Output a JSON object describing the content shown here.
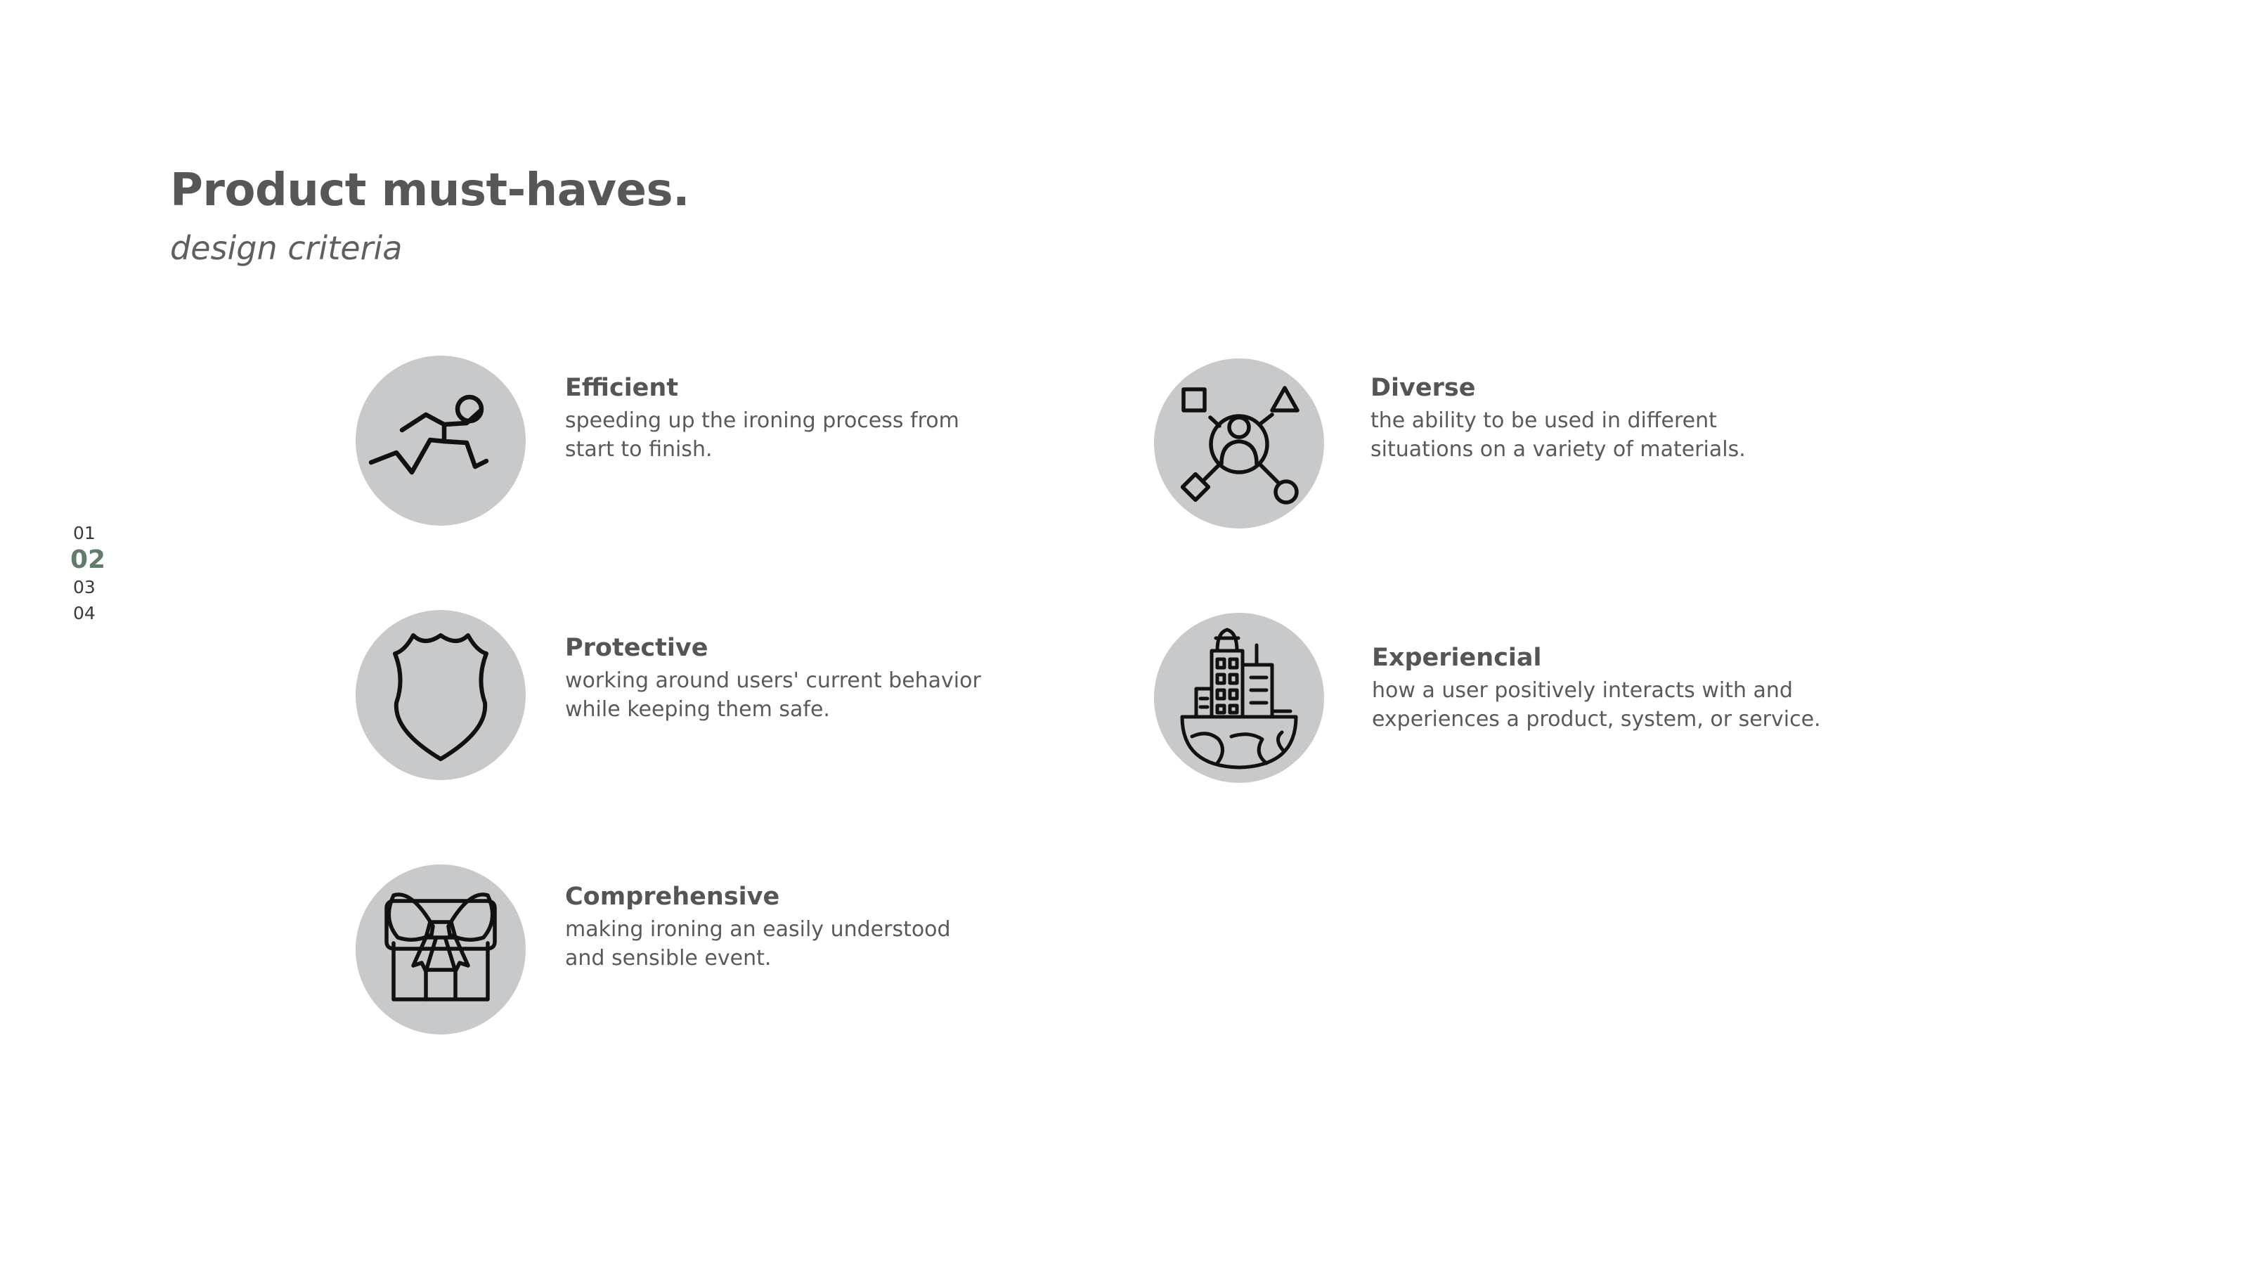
{
  "header": {
    "title": "Product must-haves.",
    "subtitle": "design criteria"
  },
  "page_nav": {
    "items": [
      "01",
      "02",
      "03",
      "04"
    ],
    "active": "02"
  },
  "criteria": [
    {
      "title": "Efficient",
      "description": "speeding up the ironing process from start to finish.",
      "icon": "running-person-icon"
    },
    {
      "title": "Protective",
      "description": "working around users' current behavior while keeping them safe.",
      "icon": "shield-icon"
    },
    {
      "title": "Comprehensive",
      "description": "making ironing an easily understood and sensible event.",
      "icon": "gift-box-icon"
    },
    {
      "title": "Diverse",
      "description": "the ability to be used in different situations on a variety of materials.",
      "icon": "person-network-icon"
    },
    {
      "title": "Experiencial",
      "description": "how a user positively interacts with and experiences a product, system, or service.",
      "icon": "city-globe-icon"
    }
  ],
  "colors": {
    "circle": "#c8c9cb",
    "text": "#565656",
    "accent": "#5f7d69",
    "icon_stroke": "#111111"
  }
}
